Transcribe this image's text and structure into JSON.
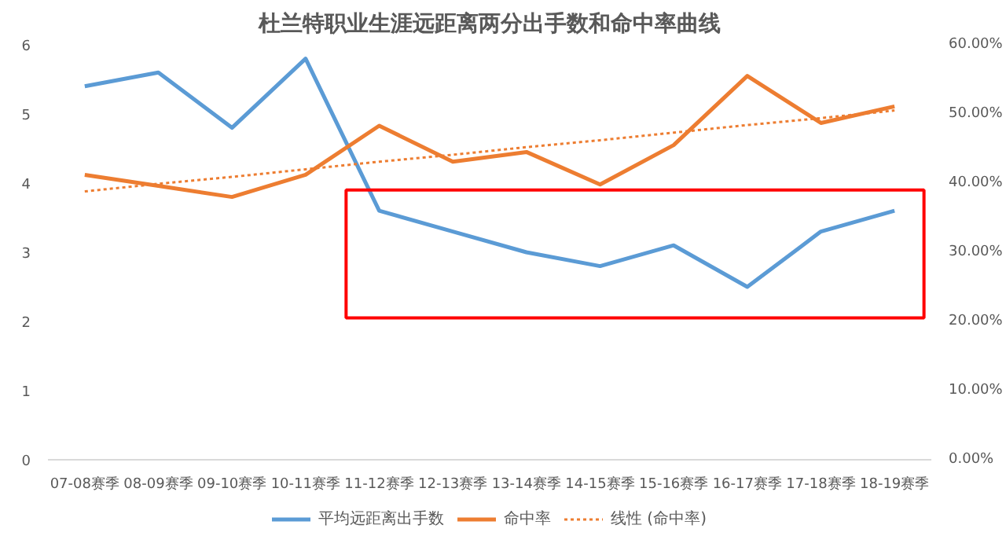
{
  "chart_data": {
    "type": "line",
    "title": "杜兰特职业生涯远距离两分出手数和命中率曲线",
    "categories": [
      "07-08赛季",
      "08-09赛季",
      "09-10赛季",
      "10-11赛季",
      "11-12赛季",
      "12-13赛季",
      "13-14赛季",
      "14-15赛季",
      "15-16赛季",
      "16-17赛季",
      "17-18赛季",
      "18-19赛季"
    ],
    "series": [
      {
        "name": "平均远距离出手数",
        "color": "#5b9bd5",
        "values": [
          5.4,
          5.6,
          4.8,
          5.8,
          3.6,
          3.3,
          3.0,
          2.8,
          3.1,
          2.5,
          3.3,
          3.6
        ]
      },
      {
        "name": "命中率",
        "color": "#ed7d31",
        "axis": "y2",
        "values": [
          41.2,
          39.6,
          38.0,
          41.2,
          48.3,
          43.1,
          44.5,
          39.8,
          45.5,
          55.5,
          48.7,
          51.1
        ]
      },
      {
        "name": "线性 (命中率)",
        "color": "#ed7d31",
        "axis": "y2",
        "line_style": "dotted",
        "values": [
          38.8,
          39.9,
          40.9,
          42.0,
          43.1,
          44.1,
          45.2,
          46.2,
          47.3,
          48.4,
          49.4,
          50.5
        ]
      }
    ],
    "ylim": [
      0,
      6
    ],
    "yticks": [
      0,
      1,
      2,
      3,
      4,
      5,
      6
    ],
    "y2lim": [
      0,
      60
    ],
    "y2ticks": [
      {
        "value": 0,
        "label": "0.00%"
      },
      {
        "value": 10,
        "label": "10.00%"
      },
      {
        "value": 20,
        "label": "20.00%"
      },
      {
        "value": 30,
        "label": "30.00%"
      },
      {
        "value": 40,
        "label": "40.00%"
      },
      {
        "value": 50,
        "label": "50.00%"
      },
      {
        "value": 60,
        "label": "60.00%"
      }
    ],
    "grid": false,
    "legend": "bottom",
    "marker": "none",
    "line_style": "solid"
  }
}
